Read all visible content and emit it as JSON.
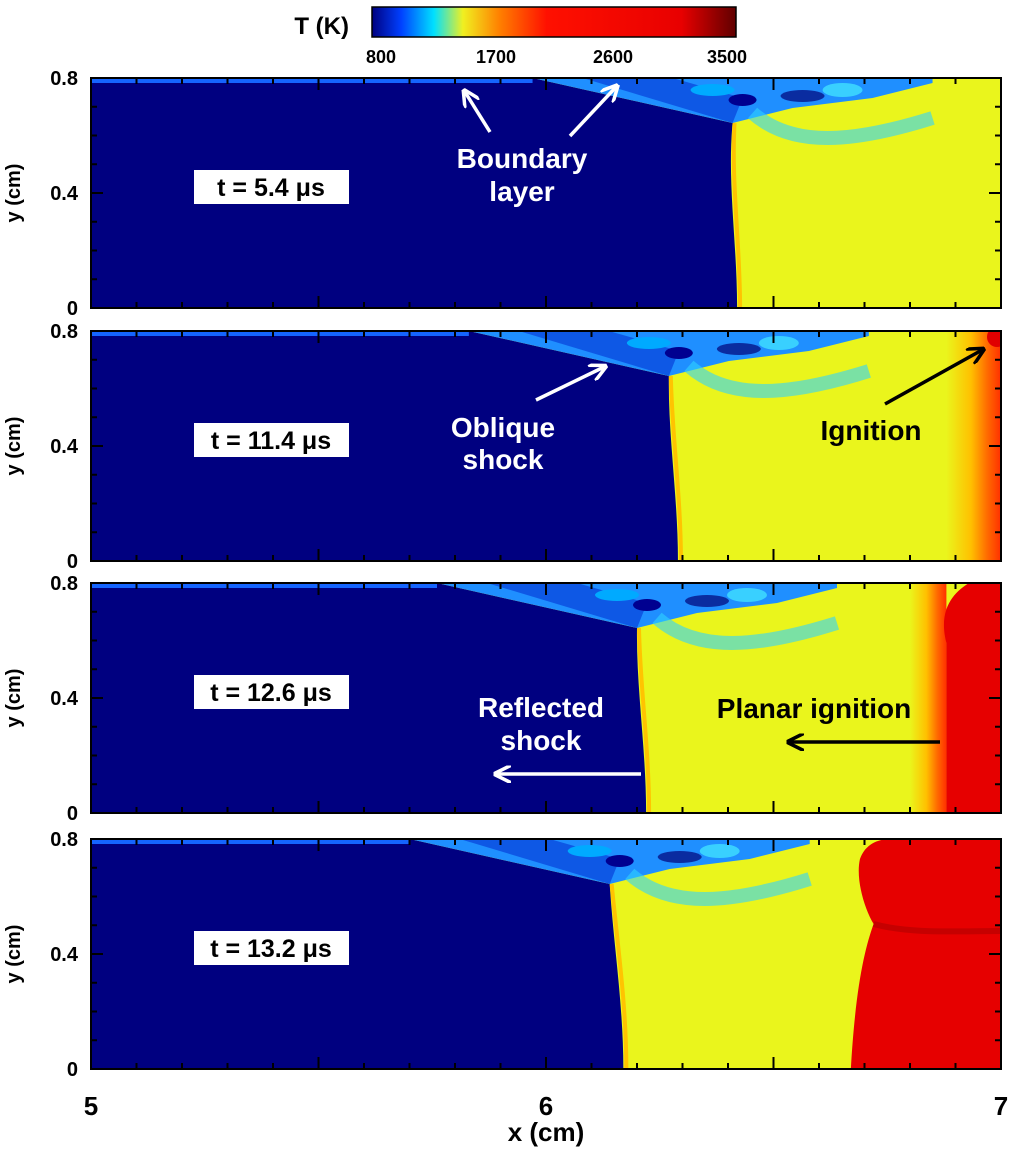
{
  "chart_data": {
    "type": "heatmap",
    "colorbar": {
      "title": "T (K)",
      "range": [
        800,
        3500
      ],
      "ticks": [
        "800",
        "1700",
        "2600",
        "3500"
      ],
      "colors": [
        "#000080",
        "#0050ff",
        "#00e0ff",
        "#f0f020",
        "#ff8000",
        "#ff0000",
        "#e00000",
        "#600000"
      ]
    },
    "xlabel": "x (cm)",
    "ylabel": "y (cm)",
    "xlim": [
      5,
      7
    ],
    "ylim": [
      0,
      0.8
    ],
    "x_ticks": [
      "5",
      "6",
      "7"
    ],
    "y_ticks": [
      "0",
      "0.4",
      "0.8"
    ],
    "panels": [
      {
        "time_label": "t = 5.4 μs",
        "shock_x": 6.41,
        "bottom_wall_x": 6.42,
        "annotations": [
          "Boundary",
          "layer"
        ]
      },
      {
        "time_label": "t = 11.4 μs",
        "shock_x": 6.27,
        "bottom_wall_x": 6.29,
        "annotations": [
          "Oblique",
          "shock",
          "Ignition"
        ]
      },
      {
        "time_label": "t = 12.6 μs",
        "shock_x": 6.2,
        "bottom_wall_x": 6.22,
        "annotations": [
          "Reflected",
          "shock",
          "Planar ignition"
        ]
      },
      {
        "time_label": "t = 13.2 μs",
        "shock_x": 6.14,
        "bottom_wall_x": 6.17,
        "annotations": []
      }
    ],
    "colors": {
      "unshocked": "#000080",
      "shocked": "#eaf51c",
      "burned": "#e60000",
      "boundary_layer": "#00b4ff"
    }
  }
}
